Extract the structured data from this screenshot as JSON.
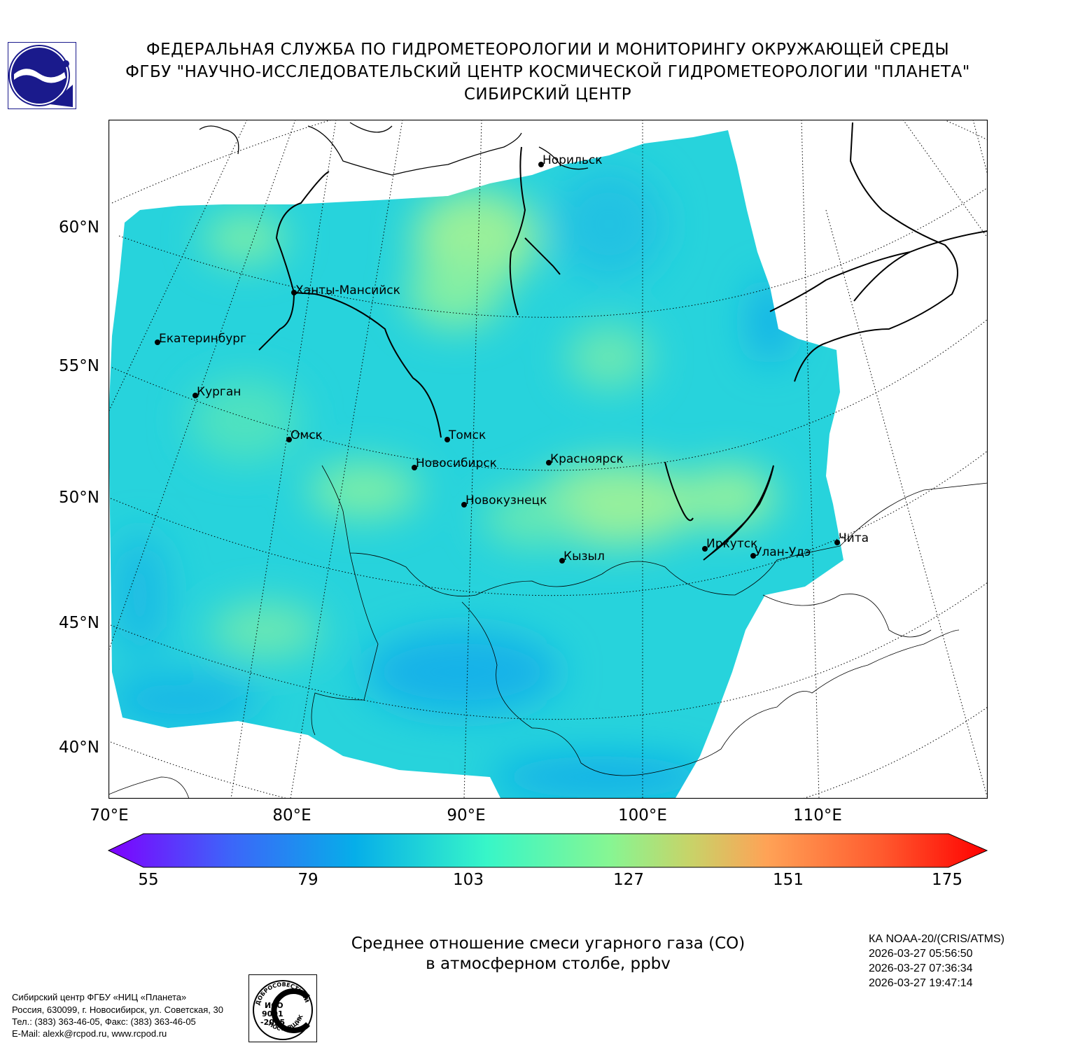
{
  "header": {
    "line1": "ФЕДЕРАЛЬНАЯ СЛУЖБА ПО ГИДРОМЕТЕОРОЛОГИИ И МОНИТОРИНГУ ОКРУЖАЮЩЕЙ СРЕДЫ",
    "line2": "ФГБУ \"НАУЧНО-ИССЛЕДОВАТЕЛЬСКИЙ ЦЕНТР КОСМИЧЕСКОЙ ГИДРОМЕТЕОРОЛОГИИ \"ПЛАНЕТА\"",
    "line3": "СИБИРСКИЙ ЦЕНТР"
  },
  "logo": {
    "icon": "planeta-logo-icon",
    "color": "#1a1a8c"
  },
  "map": {
    "lat_labels": [
      "60°N",
      "55°N",
      "50°N",
      "45°N",
      "40°N"
    ],
    "lon_labels": [
      "70°E",
      "80°E",
      "90°E",
      "100°E",
      "110°E"
    ],
    "cities": [
      {
        "name": "Норильск"
      },
      {
        "name": "Ханты-Мансийск"
      },
      {
        "name": "Екатеринбург"
      },
      {
        "name": "Курган"
      },
      {
        "name": "Омск"
      },
      {
        "name": "Томск"
      },
      {
        "name": "Новосибирск"
      },
      {
        "name": "Красноярск"
      },
      {
        "name": "Новокузнецк"
      },
      {
        "name": "Кызыл"
      },
      {
        "name": "Иркутск"
      },
      {
        "name": "Улан-Удэ"
      },
      {
        "name": "Чита"
      }
    ],
    "field_colors": {
      "base": "#27d3dc",
      "low": "#12b6e8",
      "high": "#7ceea8",
      "peak": "#a8f090"
    }
  },
  "colorbar": {
    "ticks": [
      "55",
      "79",
      "103",
      "127",
      "151",
      "175"
    ],
    "min": 55,
    "max": 175,
    "colors": [
      "#7f00ff",
      "#3c66f9",
      "#06aee9",
      "#37f6c8",
      "#86f693",
      "#c6d469",
      "#ffa256",
      "#ff5a2e",
      "#ff0000"
    ]
  },
  "caption": {
    "line1": "Среднее отношение смеси угарного газа (CO)",
    "line2": "в атмосферном столбе, ppbv"
  },
  "satellite": {
    "name": "КА NOAA-20/(CRIS/ATMS)",
    "times": [
      "2026-03-27 05:56:50",
      "2026-03-27 07:36:34",
      "2026-03-27 19:47:14"
    ]
  },
  "footer": {
    "line1": "Сибирский центр ФГБУ «НИЦ «Планета»",
    "line2": "Россия, 630099, г. Новосибирск, ул. Советская, 30",
    "line3": "Тел.: (383) 363-46-05, Факс: (383) 363-46-05",
    "line4": "E-Mail: alexk@rcpod.ru, www.rcpod.ru"
  },
  "iso_stamp": {
    "top_text": "ДОБРОСОВЕСТНЫЙ",
    "line1": "ИСО",
    "line2": "9001",
    "line3": "-2015",
    "bottom_text": "ПОСТАВЩИК"
  }
}
